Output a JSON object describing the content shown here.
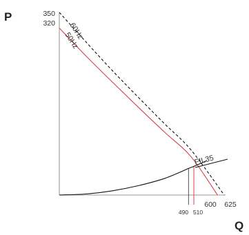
{
  "chart_data": {
    "type": "line",
    "title": "",
    "ylabel": "P",
    "xlabel": "Q",
    "y_ticks": [
      "350",
      "320"
    ],
    "x_ticks": [
      "490",
      "510",
      "600",
      "625"
    ],
    "xlim": [
      0,
      625
    ],
    "ylim": [
      0,
      350
    ],
    "grid": false,
    "series": [
      {
        "name": "60Hz",
        "color": "#111111",
        "style": "dashed",
        "x": [
          0,
          100,
          200,
          300,
          400,
          500,
          625
        ],
        "y": [
          350,
          294,
          239,
          187,
          136,
          86,
          0
        ]
      },
      {
        "name": "50Hz",
        "color": "#d8404a",
        "style": "solid",
        "x": [
          0,
          100,
          200,
          300,
          400,
          500,
          600
        ],
        "y": [
          320,
          267,
          217,
          168,
          120,
          73,
          0
        ]
      },
      {
        "name": "FIL35",
        "color": "#111111",
        "style": "solid",
        "x": [
          0,
          100,
          200,
          300,
          400,
          490,
          510,
          560
        ],
        "y": [
          0,
          2,
          8,
          18,
          32,
          51,
          55,
          66
        ]
      }
    ],
    "markers": [
      {
        "x": 490,
        "color": "#555555"
      },
      {
        "x": 510,
        "color": "#d8404a"
      }
    ]
  }
}
